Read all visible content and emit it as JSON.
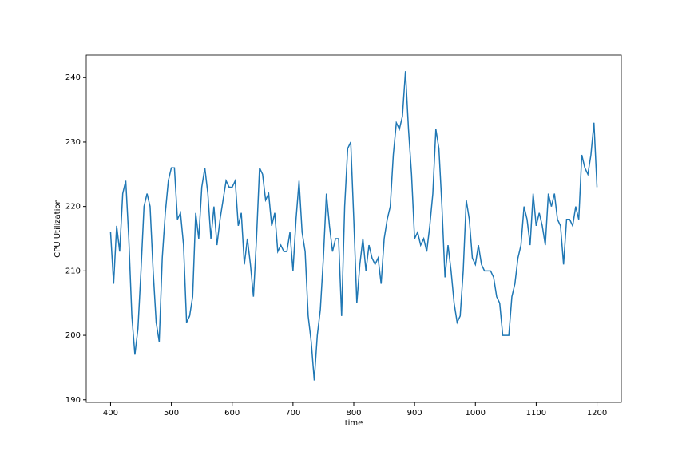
{
  "chart_data": {
    "type": "line",
    "x_label": "time",
    "y_label": "CPU Utilization",
    "x": [
      400,
      405,
      410,
      415,
      420,
      425,
      430,
      435,
      440,
      445,
      450,
      455,
      460,
      465,
      470,
      475,
      480,
      485,
      490,
      495,
      500,
      505,
      510,
      515,
      520,
      525,
      530,
      535,
      540,
      545,
      550,
      555,
      560,
      565,
      570,
      575,
      580,
      585,
      590,
      595,
      600,
      605,
      610,
      615,
      620,
      625,
      630,
      635,
      640,
      645,
      650,
      655,
      660,
      665,
      670,
      675,
      680,
      685,
      690,
      695,
      700,
      705,
      710,
      715,
      720,
      725,
      730,
      735,
      740,
      745,
      750,
      755,
      760,
      765,
      770,
      775,
      780,
      785,
      790,
      795,
      800,
      805,
      810,
      815,
      820,
      825,
      830,
      835,
      840,
      845,
      850,
      855,
      860,
      865,
      870,
      875,
      880,
      885,
      890,
      895,
      900,
      905,
      910,
      915,
      920,
      925,
      930,
      935,
      940,
      945,
      950,
      955,
      960,
      965,
      970,
      975,
      980,
      985,
      990,
      995,
      1000,
      1005,
      1010,
      1015,
      1020,
      1025,
      1030,
      1035,
      1040,
      1045,
      1050,
      1055,
      1060,
      1065,
      1070,
      1075,
      1080,
      1085,
      1090,
      1095,
      1100,
      1105,
      1110,
      1115,
      1120,
      1125,
      1130,
      1135,
      1140,
      1145,
      1150,
      1155,
      1160,
      1165,
      1170,
      1175,
      1180,
      1185,
      1190,
      1195,
      1200
    ],
    "series": [
      {
        "name": "CPU Utilization",
        "color": "#1f77b4",
        "values": [
          216,
          208,
          217,
          213,
          222,
          224,
          215,
          203,
          197,
          201,
          210,
          220,
          222,
          220,
          210,
          202,
          199,
          212,
          219,
          224,
          226,
          226,
          218,
          219,
          214,
          202,
          203,
          206,
          219,
          215,
          223,
          226,
          222,
          215,
          220,
          214,
          218,
          221,
          224,
          223,
          223,
          224,
          217,
          219,
          211,
          215,
          211,
          206,
          215,
          226,
          225,
          221,
          222,
          217,
          219,
          213,
          214,
          213,
          213,
          216,
          210,
          218,
          224,
          216,
          213,
          203,
          199,
          193,
          200,
          204,
          212,
          222,
          217,
          213,
          215,
          215,
          203,
          220,
          229,
          230,
          218,
          205,
          211,
          215,
          210,
          214,
          212,
          211,
          212,
          208,
          215,
          218,
          220,
          228,
          233,
          232,
          234,
          241,
          232,
          225,
          215,
          216,
          214,
          215,
          213,
          217,
          222,
          232,
          229,
          220,
          209,
          214,
          210,
          205,
          202,
          203,
          210,
          221,
          218,
          212,
          211,
          214,
          211,
          210,
          210,
          210,
          209,
          206,
          205,
          200,
          200,
          200,
          206,
          208,
          212,
          214,
          220,
          218,
          214,
          222,
          217,
          219,
          217,
          214,
          222,
          220,
          222,
          218,
          217,
          211,
          218,
          218,
          217,
          220,
          218,
          228,
          226,
          225,
          228,
          233,
          223
        ]
      }
    ],
    "xlim": [
      360,
      1240
    ],
    "ylim": [
      189.6,
      243.5
    ],
    "xticks": [
      400,
      500,
      600,
      700,
      800,
      900,
      1000,
      1100,
      1200
    ],
    "yticks": [
      190,
      200,
      210,
      220,
      230,
      240
    ]
  }
}
